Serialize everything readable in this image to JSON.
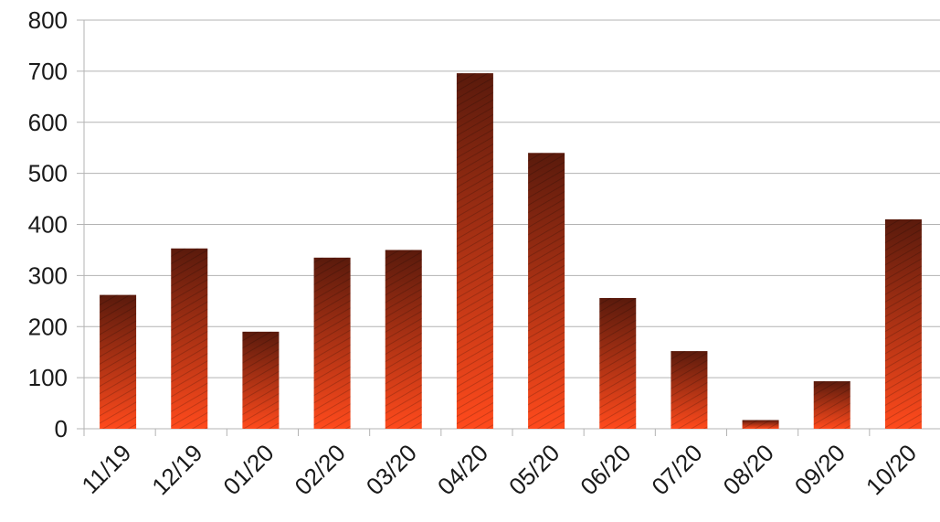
{
  "chart_data": {
    "type": "bar",
    "categories": [
      "11/19",
      "12/19",
      "01/20",
      "02/20",
      "03/20",
      "04/20",
      "05/20",
      "06/20",
      "07/20",
      "08/20",
      "09/20",
      "10/20"
    ],
    "values": [
      262,
      353,
      190,
      335,
      350,
      696,
      540,
      256,
      152,
      17,
      93,
      410
    ],
    "y_ticks": [
      "0",
      "100",
      "200",
      "300",
      "400",
      "500",
      "600",
      "700",
      "800"
    ],
    "ylim": [
      0,
      800
    ],
    "grid": true,
    "legend": "none",
    "bar_gradient": {
      "top": "#5a1a0c",
      "bottom": "#ff4a1c"
    },
    "gridline_color": "#b3b3b3",
    "axis_color": "#b3b3b3"
  }
}
